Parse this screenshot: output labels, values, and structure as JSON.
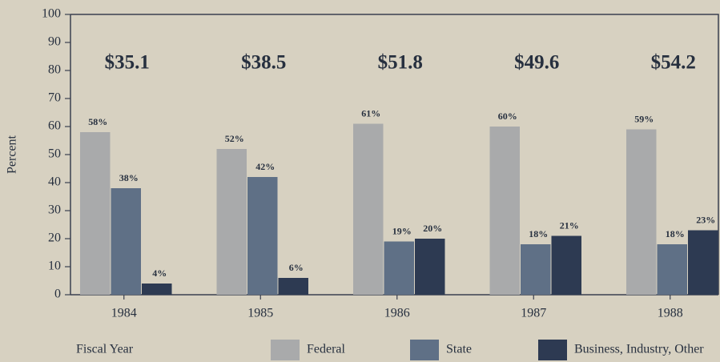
{
  "chart_data": {
    "type": "bar",
    "y_label": "Percent",
    "x_label": "Fiscal Year",
    "categories": [
      "1984",
      "1985",
      "1986",
      "1987",
      "1988"
    ],
    "annotations": [
      "$35.1",
      "$38.5",
      "$51.8",
      "$49.6",
      "$54.2"
    ],
    "series": [
      {
        "name": "Federal",
        "color": "#a9aaab",
        "values": [
          58,
          52,
          61,
          60,
          59
        ],
        "value_labels": [
          "58%",
          "52%",
          "61%",
          "60%",
          "59%"
        ]
      },
      {
        "name": "State",
        "color": "#5f7086",
        "values": [
          38,
          42,
          19,
          18,
          18
        ],
        "value_labels": [
          "38%",
          "42%",
          "19%",
          "18%",
          "18%"
        ]
      },
      {
        "name": "Business, Industry, Other",
        "color": "#2d3a52",
        "values": [
          4,
          6,
          20,
          21,
          23
        ],
        "value_labels": [
          "4%",
          "6%",
          "20%",
          "21%",
          "23%"
        ]
      }
    ],
    "ylim": [
      0,
      100
    ],
    "yticks": [
      0,
      10,
      20,
      30,
      40,
      50,
      60,
      70,
      80,
      90,
      100
    ]
  }
}
